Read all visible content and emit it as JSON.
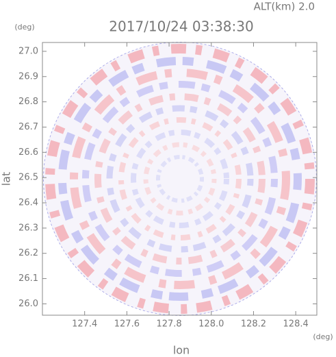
{
  "chart_data": {
    "type": "ppi",
    "title": "2017/10/24 03:38:30",
    "subtitle": "ALT(km) 2.0",
    "x_label": "lon",
    "y_label": "lat",
    "x_unit": "(deg)",
    "y_unit": "(deg)",
    "xlim": [
      127.2,
      128.5
    ],
    "xticks": [
      {
        "value": 127.4,
        "label": "127.4"
      },
      {
        "value": 127.6,
        "label": "127.6"
      },
      {
        "value": 127.8,
        "label": "127.8"
      },
      {
        "value": 128.0,
        "label": "128.0"
      },
      {
        "value": 128.2,
        "label": "128.2"
      },
      {
        "value": 128.4,
        "label": "128.4"
      }
    ],
    "ylim": [
      25.955,
      27.035
    ],
    "yticks": [
      {
        "value": 26.0,
        "label": "26.0"
      },
      {
        "value": 26.1,
        "label": "26.1"
      },
      {
        "value": 26.2,
        "label": "26.2"
      },
      {
        "value": 26.3,
        "label": "26.3"
      },
      {
        "value": 26.4,
        "label": "26.4"
      },
      {
        "value": 26.5,
        "label": "26.5"
      },
      {
        "value": 26.6,
        "label": "26.6"
      },
      {
        "value": 26.7,
        "label": "26.7"
      },
      {
        "value": 26.8,
        "label": "26.8"
      },
      {
        "value": 26.9,
        "label": "26.9"
      },
      {
        "value": 27.0,
        "label": "27.0"
      }
    ]
  }
}
